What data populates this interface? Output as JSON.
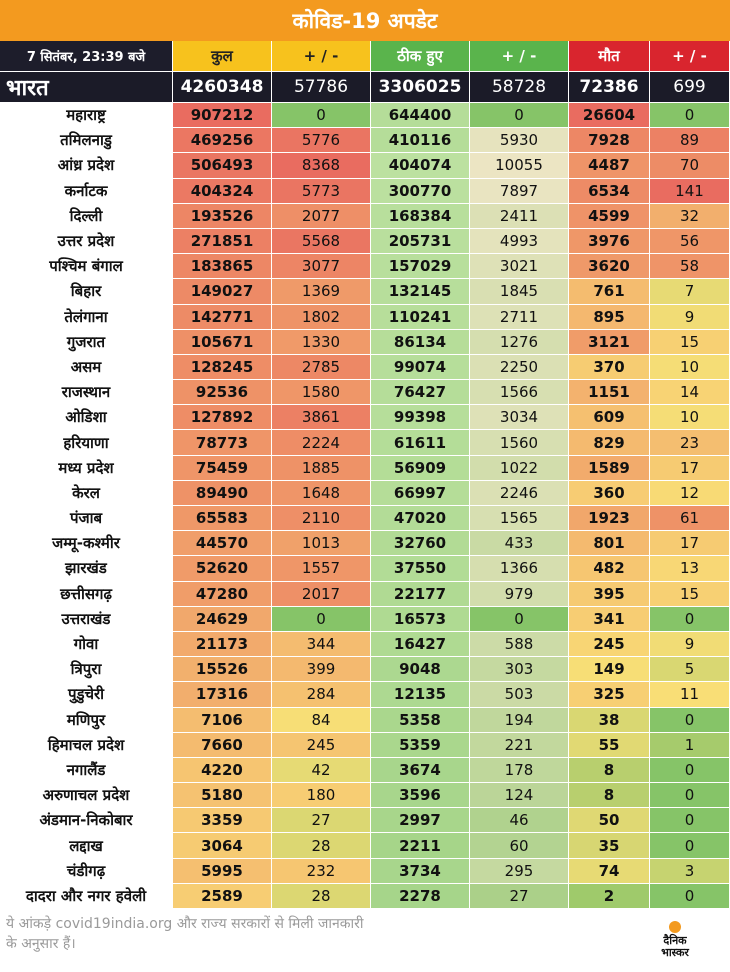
{
  "title": "कोविड-19 अपडेट",
  "header": {
    "date": "7 सितंबर, 23:39 बजे",
    "total": "कुल",
    "total_change": "+ / -",
    "recovered": "ठीक हुए",
    "recovered_change": "+ / -",
    "deaths": "मौत",
    "deaths_change": "+ / -"
  },
  "india": {
    "name": "भारत",
    "total": "4260348",
    "total_change": "57786",
    "recovered": "3306025",
    "recovered_change": "58728",
    "deaths": "72386",
    "deaths_change": "699"
  },
  "rows": [
    {
      "name": "महाराष्ट्र",
      "total": "907212",
      "tc": "0",
      "rec": "644400",
      "rc": "0",
      "death": "26604",
      "dc": "0"
    },
    {
      "name": "तमिलनाडु",
      "total": "469256",
      "tc": "5776",
      "rec": "410116",
      "rc": "5930",
      "death": "7928",
      "dc": "89"
    },
    {
      "name": "आंध्र प्रदेश",
      "total": "506493",
      "tc": "8368",
      "rec": "404074",
      "rc": "10055",
      "death": "4487",
      "dc": "70"
    },
    {
      "name": "कर्नाटक",
      "total": "404324",
      "tc": "5773",
      "rec": "300770",
      "rc": "7897",
      "death": "6534",
      "dc": "141"
    },
    {
      "name": "दिल्ली",
      "total": "193526",
      "tc": "2077",
      "rec": "168384",
      "rc": "2411",
      "death": "4599",
      "dc": "32"
    },
    {
      "name": "उत्तर प्रदेश",
      "total": "271851",
      "tc": "5568",
      "rec": "205731",
      "rc": "4993",
      "death": "3976",
      "dc": "56"
    },
    {
      "name": "पश्चिम बंगाल",
      "total": "183865",
      "tc": "3077",
      "rec": "157029",
      "rc": "3021",
      "death": "3620",
      "dc": "58"
    },
    {
      "name": "बिहार",
      "total": "149027",
      "tc": "1369",
      "rec": "132145",
      "rc": "1845",
      "death": "761",
      "dc": "7"
    },
    {
      "name": "तेलंगाना",
      "total": "142771",
      "tc": "1802",
      "rec": "110241",
      "rc": "2711",
      "death": "895",
      "dc": "9"
    },
    {
      "name": "गुजरात",
      "total": "105671",
      "tc": "1330",
      "rec": "86134",
      "rc": "1276",
      "death": "3121",
      "dc": "15"
    },
    {
      "name": "असम",
      "total": "128245",
      "tc": "2785",
      "rec": "99074",
      "rc": "2250",
      "death": "370",
      "dc": "10"
    },
    {
      "name": "राजस्थान",
      "total": "92536",
      "tc": "1580",
      "rec": "76427",
      "rc": "1566",
      "death": "1151",
      "dc": "14"
    },
    {
      "name": "ओडिशा",
      "total": "127892",
      "tc": "3861",
      "rec": "99398",
      "rc": "3034",
      "death": "609",
      "dc": "10"
    },
    {
      "name": "हरियाणा",
      "total": "78773",
      "tc": "2224",
      "rec": "61611",
      "rc": "1560",
      "death": "829",
      "dc": "23"
    },
    {
      "name": "मध्य प्रदेश",
      "total": "75459",
      "tc": "1885",
      "rec": "56909",
      "rc": "1022",
      "death": "1589",
      "dc": "17"
    },
    {
      "name": "केरल",
      "total": "89490",
      "tc": "1648",
      "rec": "66997",
      "rc": "2246",
      "death": "360",
      "dc": "12"
    },
    {
      "name": "पंजाब",
      "total": "65583",
      "tc": "2110",
      "rec": "47020",
      "rc": "1565",
      "death": "1923",
      "dc": "61"
    },
    {
      "name": "जम्मू-कश्मीर",
      "total": "44570",
      "tc": "1013",
      "rec": "32760",
      "rc": "433",
      "death": "801",
      "dc": "17"
    },
    {
      "name": "झारखंड",
      "total": "52620",
      "tc": "1557",
      "rec": "37550",
      "rc": "1366",
      "death": "482",
      "dc": "13"
    },
    {
      "name": "छत्तीसगढ़",
      "total": "47280",
      "tc": "2017",
      "rec": "22177",
      "rc": "979",
      "death": "395",
      "dc": "15"
    },
    {
      "name": "उत्तराखंड",
      "total": "24629",
      "tc": "0",
      "rec": "16573",
      "rc": "0",
      "death": "341",
      "dc": "0"
    },
    {
      "name": "गोवा",
      "total": "21173",
      "tc": "344",
      "rec": "16427",
      "rc": "588",
      "death": "245",
      "dc": "9"
    },
    {
      "name": "त्रिपुरा",
      "total": "15526",
      "tc": "399",
      "rec": "9048",
      "rc": "303",
      "death": "149",
      "dc": "5"
    },
    {
      "name": "पुडुचेरी",
      "total": "17316",
      "tc": "284",
      "rec": "12135",
      "rc": "503",
      "death": "325",
      "dc": "11"
    },
    {
      "name": "मणिपुर",
      "total": "7106",
      "tc": "84",
      "rec": "5358",
      "rc": "194",
      "death": "38",
      "dc": "0"
    },
    {
      "name": "हिमाचल प्रदेश",
      "total": "7660",
      "tc": "245",
      "rec": "5359",
      "rc": "221",
      "death": "55",
      "dc": "1"
    },
    {
      "name": "नगालैंड",
      "total": "4220",
      "tc": "42",
      "rec": "3674",
      "rc": "178",
      "death": "8",
      "dc": "0"
    },
    {
      "name": "अरुणाचल प्रदेश",
      "total": "5180",
      "tc": "180",
      "rec": "3596",
      "rc": "124",
      "death": "8",
      "dc": "0"
    },
    {
      "name": "अंडमान-निकोबार",
      "total": "3359",
      "tc": "27",
      "rec": "2997",
      "rc": "46",
      "death": "50",
      "dc": "0"
    },
    {
      "name": "लद्दाख",
      "total": "3064",
      "tc": "28",
      "rec": "2211",
      "rc": "60",
      "death": "35",
      "dc": "0"
    },
    {
      "name": "चंडीगढ़",
      "total": "5995",
      "tc": "232",
      "rec": "3734",
      "rc": "295",
      "death": "74",
      "dc": "3"
    },
    {
      "name": "दादरा और नगर हवेली",
      "total": "2589",
      "tc": "28",
      "rec": "2278",
      "rc": "27",
      "death": "2",
      "dc": "0"
    }
  ],
  "footer": {
    "note": "ये आंकड़े covid19india.org और राज्य सरकारों से मिली जानकारी के अनुसार हैं।",
    "logo_line1": "दैनिक",
    "logo_line2": "भास्कर"
  },
  "colors": {
    "accent": "#f39a1f",
    "header_dark": "#1d1d2b",
    "yellow": "#f7c21d",
    "green": "#5ab44c",
    "red": "#d9252e"
  }
}
